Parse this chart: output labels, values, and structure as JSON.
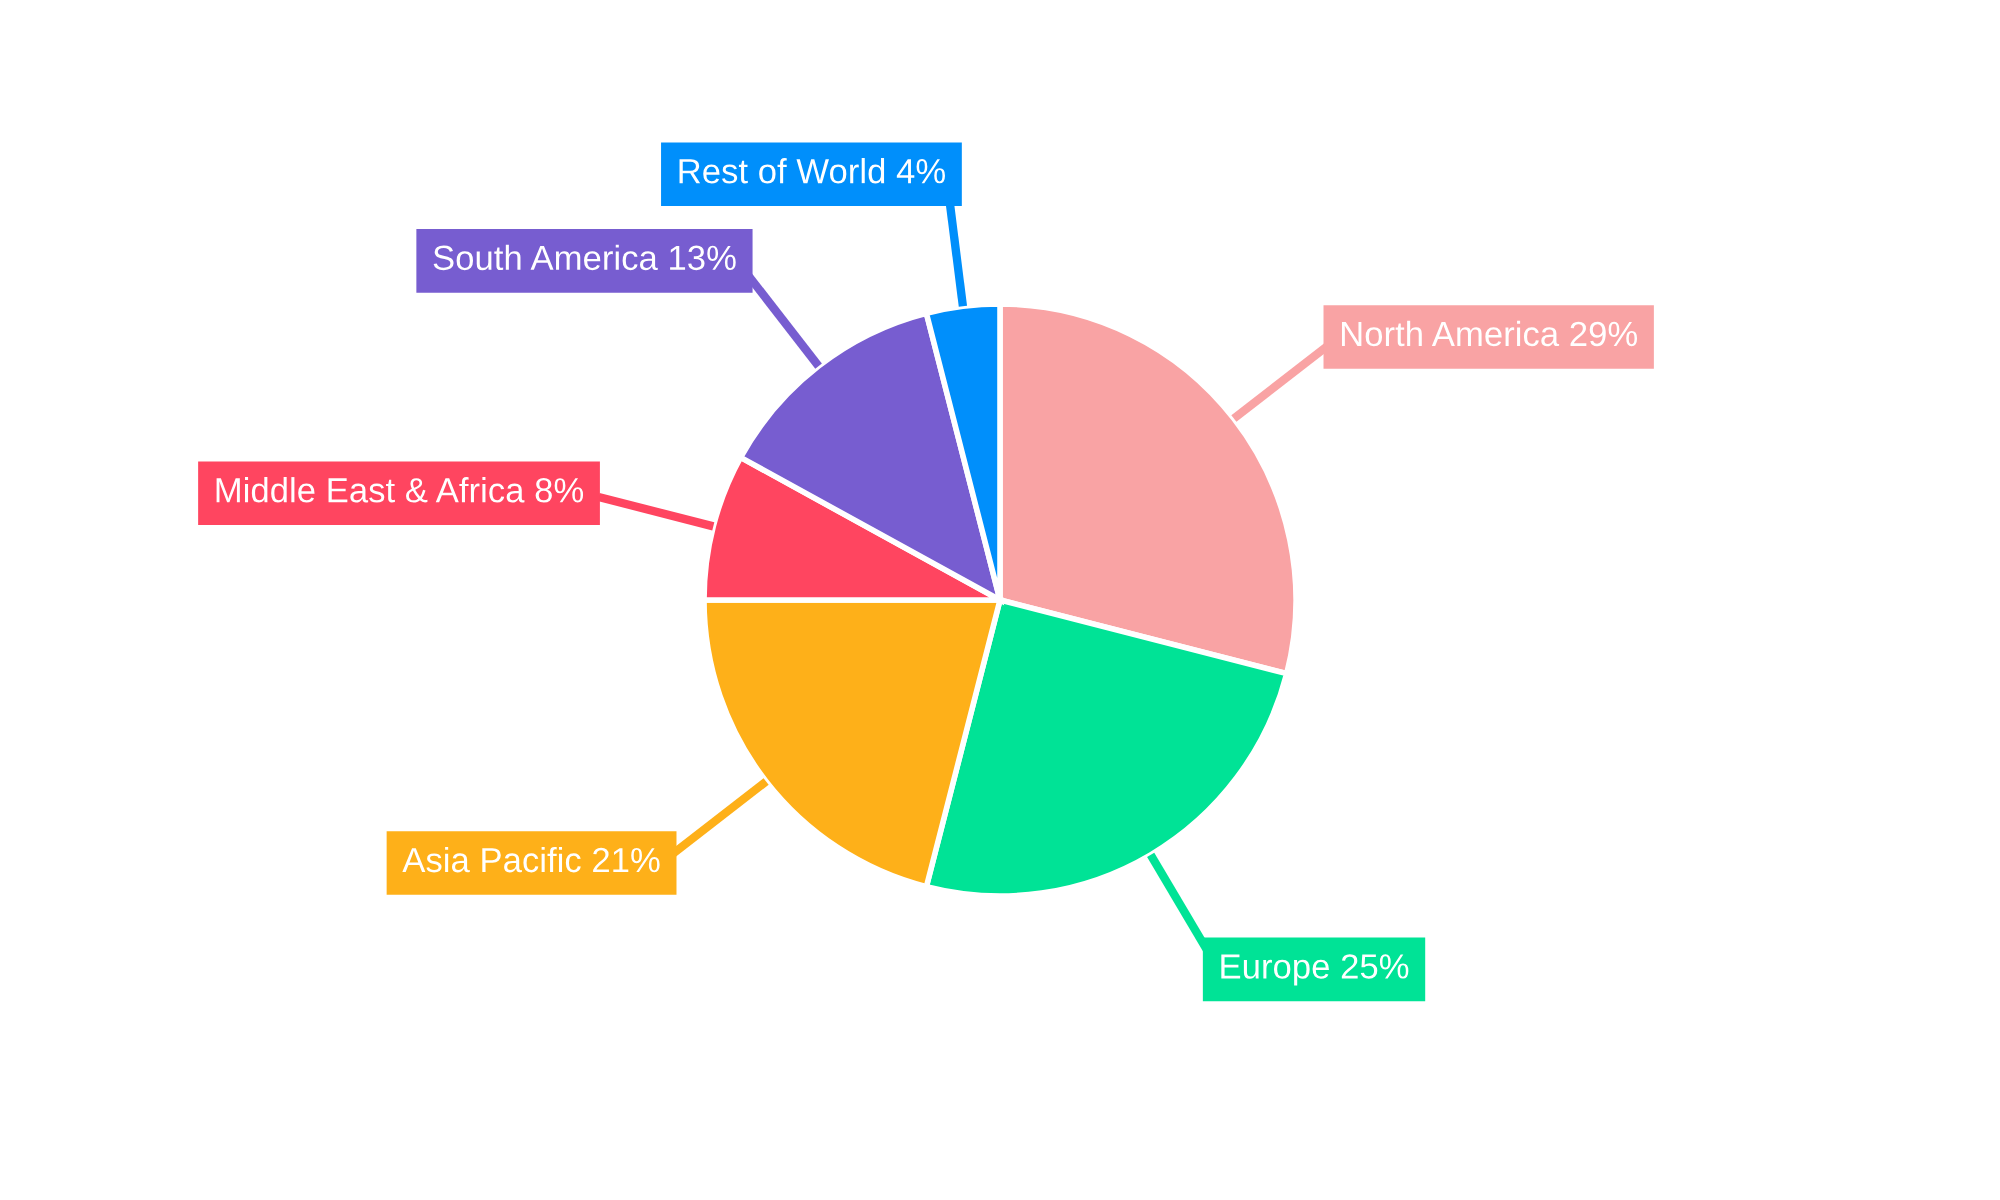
{
  "chart_data": {
    "type": "pie",
    "categories": [
      "North America",
      "Europe",
      "Asia Pacific",
      "Middle East & Africa",
      "South America",
      "Rest of World"
    ],
    "values": [
      29,
      25,
      21,
      8,
      13,
      4
    ],
    "value_labels": [
      "29%",
      "25%",
      "21%",
      "8%",
      "13%",
      "4%"
    ],
    "colors": [
      "#f9a3a4",
      "#00e396",
      "#feb019",
      "#ff4560",
      "#775dd0",
      "#008ffb"
    ],
    "legend": false
  }
}
